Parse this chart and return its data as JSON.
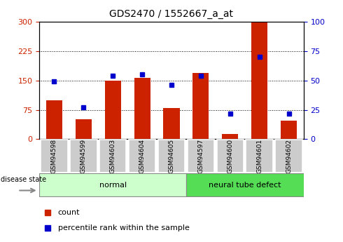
{
  "title": "GDS2470 / 1552667_a_at",
  "samples": [
    "GSM94598",
    "GSM94599",
    "GSM94603",
    "GSM94604",
    "GSM94605",
    "GSM94597",
    "GSM94600",
    "GSM94601",
    "GSM94602"
  ],
  "count_values": [
    100,
    50,
    150,
    157,
    80,
    170,
    13,
    298,
    48
  ],
  "percentile_values": [
    49,
    27,
    54,
    55,
    46,
    54,
    22,
    70,
    22
  ],
  "group_labels": [
    "normal",
    "neural tube defect"
  ],
  "group_sizes": [
    5,
    4
  ],
  "left_ylim": [
    0,
    300
  ],
  "right_ylim": [
    0,
    100
  ],
  "left_yticks": [
    0,
    75,
    150,
    225,
    300
  ],
  "right_yticks": [
    0,
    25,
    50,
    75,
    100
  ],
  "bar_color": "#cc2200",
  "dot_color": "#0000cc",
  "normal_bg": "#ccffcc",
  "defect_bg": "#55dd55",
  "tick_bg": "#cccccc",
  "legend_count_label": "count",
  "legend_pct_label": "percentile rank within the sample",
  "disease_state_label": "disease state"
}
